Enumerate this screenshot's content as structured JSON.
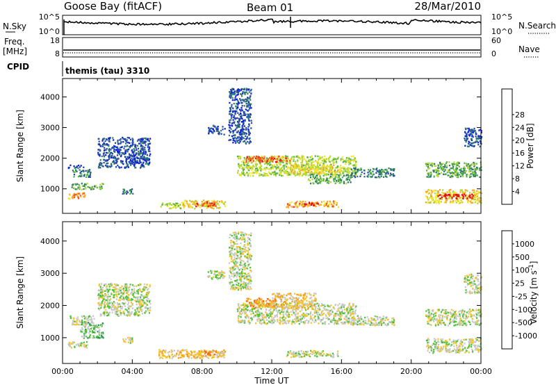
{
  "header": {
    "station": "Goose Bay (fitACF)",
    "beam": "Beam 01",
    "date": "28/Mar/2010"
  },
  "noise_panel": {
    "left_label": "N.Sky",
    "right_label": "N.Search",
    "left_ticks": [
      "10^5",
      "10^0"
    ],
    "right_ticks": [
      "10^5",
      "10^0"
    ]
  },
  "freq_panel": {
    "left_label_1": "Freq.",
    "left_label_2": "[MHz]",
    "right_label": "Nave",
    "left_ticks": [
      "18",
      "8"
    ],
    "right_ticks": [
      "60",
      "0"
    ]
  },
  "cpid_panel": {
    "label": "CPID",
    "program": "themis (tau) 3310"
  },
  "chart_data": [
    {
      "type": "heatmap",
      "name": "power",
      "ylabel": "Slant Range [km]",
      "y_ticks": [
        1000,
        2000,
        3000,
        4000
      ],
      "ylim": [
        200,
        4600
      ],
      "xlim": [
        0,
        24
      ],
      "colorbar": {
        "label": "Power [dB]",
        "ticks": [
          "4",
          "8",
          "12",
          "16",
          "20",
          "24",
          "28"
        ],
        "colors": [
          "#0a1fe0",
          "#2a49a8",
          "#2f7d6a",
          "#55b546",
          "#b3d63a",
          "#f2e52a",
          "#f7a629",
          "#f1541f",
          "#e30d12"
        ]
      },
      "regions": [
        {
          "t0": 0.3,
          "t1": 1.3,
          "r0": 700,
          "r1": 900,
          "level": 6
        },
        {
          "t0": 0.5,
          "t1": 2.3,
          "r0": 1000,
          "r1": 1200,
          "level": 3
        },
        {
          "t0": 0.5,
          "t1": 1.6,
          "r0": 1400,
          "r1": 1650,
          "level": 2
        },
        {
          "t0": 0.3,
          "t1": 1.2,
          "r0": 1700,
          "r1": 1800,
          "level": 1
        },
        {
          "t0": 2.0,
          "t1": 5.0,
          "r0": 1700,
          "r1": 2700,
          "level": 1
        },
        {
          "t0": 3.4,
          "t1": 4.0,
          "r0": 850,
          "r1": 1050,
          "level": 2
        },
        {
          "t0": 5.5,
          "t1": 6.8,
          "r0": 380,
          "r1": 560,
          "level": 4
        },
        {
          "t0": 6.8,
          "t1": 9.3,
          "r0": 380,
          "r1": 650,
          "level": 5
        },
        {
          "t0": 7.5,
          "t1": 8.8,
          "r0": 450,
          "r1": 600,
          "level": 7
        },
        {
          "t0": 8.3,
          "t1": 9.3,
          "r0": 2800,
          "r1": 3100,
          "level": 1
        },
        {
          "t0": 9.5,
          "t1": 10.8,
          "r0": 2500,
          "r1": 4300,
          "level": 1
        },
        {
          "t0": 10.0,
          "t1": 16.8,
          "r0": 1450,
          "r1": 2100,
          "level": 4
        },
        {
          "t0": 10.5,
          "t1": 13.0,
          "r0": 1900,
          "r1": 2100,
          "level": 7
        },
        {
          "t0": 13.0,
          "t1": 16.0,
          "r0": 1500,
          "r1": 1800,
          "level": 5
        },
        {
          "t0": 14.0,
          "t1": 16.5,
          "r0": 1200,
          "r1": 1500,
          "level": 3
        },
        {
          "t0": 12.8,
          "t1": 15.8,
          "r0": 420,
          "r1": 620,
          "level": 6
        },
        {
          "t0": 13.8,
          "t1": 14.8,
          "r0": 470,
          "r1": 580,
          "level": 8
        },
        {
          "t0": 16.5,
          "t1": 19.0,
          "r0": 1400,
          "r1": 1700,
          "level": 2
        },
        {
          "t0": 20.8,
          "t1": 24.0,
          "r0": 1400,
          "r1": 1900,
          "level": 3
        },
        {
          "t0": 20.8,
          "t1": 24.0,
          "r0": 550,
          "r1": 1000,
          "level": 5
        },
        {
          "t0": 21.5,
          "t1": 23.6,
          "r0": 700,
          "r1": 850,
          "level": 8
        },
        {
          "t0": 23.0,
          "t1": 24.0,
          "r0": 2400,
          "r1": 3000,
          "level": 1
        }
      ]
    },
    {
      "type": "heatmap",
      "name": "velocity",
      "xlabel": "Time UT",
      "ylabel": "Slant Range [km]",
      "x_ticks": [
        "00:00",
        "04:00",
        "08:00",
        "12:00",
        "16:00",
        "20:00",
        "00:00"
      ],
      "y_ticks": [
        1000,
        2000,
        3000,
        4000
      ],
      "ylim": [
        200,
        4600
      ],
      "xlim": [
        0,
        24
      ],
      "colorbar": {
        "label": "Velocity [m s^-1]",
        "ticks": [
          "1000",
          "500",
          "100",
          "25",
          "-25",
          "-100",
          "-500",
          "-1000"
        ],
        "colors": [
          "#1232c8",
          "#2a5fa8",
          "#2e8c5a",
          "#4fc23a",
          "#c8c8c8",
          "#f5c52a",
          "#f39a20",
          "#f06a1e",
          "#e6101a"
        ]
      },
      "regions": [
        {
          "t0": 0.3,
          "t1": 1.4,
          "r0": 700,
          "r1": 900,
          "level": 4
        },
        {
          "t0": 0.4,
          "t1": 1.8,
          "r0": 1400,
          "r1": 1700,
          "level": 4
        },
        {
          "t0": 1.0,
          "t1": 2.3,
          "r0": 1000,
          "r1": 1500,
          "level": 3
        },
        {
          "t0": 2.0,
          "t1": 5.0,
          "r0": 1700,
          "r1": 2700,
          "level": 4
        },
        {
          "t0": 3.4,
          "t1": 4.0,
          "r0": 850,
          "r1": 1050,
          "level": 4
        },
        {
          "t0": 5.5,
          "t1": 9.3,
          "r0": 380,
          "r1": 650,
          "level": 5
        },
        {
          "t0": 7.5,
          "t1": 8.8,
          "r0": 450,
          "r1": 620,
          "level": 6
        },
        {
          "t0": 8.3,
          "t1": 9.3,
          "r0": 2800,
          "r1": 3100,
          "level": 4
        },
        {
          "t0": 9.5,
          "t1": 10.8,
          "r0": 2500,
          "r1": 4300,
          "level": 4
        },
        {
          "t0": 10.0,
          "t1": 16.8,
          "r0": 1450,
          "r1": 2100,
          "level": 4
        },
        {
          "t0": 10.5,
          "t1": 12.2,
          "r0": 1950,
          "r1": 2250,
          "level": 6
        },
        {
          "t0": 12.0,
          "t1": 14.5,
          "r0": 1900,
          "r1": 2400,
          "level": 5
        },
        {
          "t0": 12.8,
          "t1": 15.8,
          "r0": 420,
          "r1": 620,
          "level": 4
        },
        {
          "t0": 16.5,
          "t1": 19.0,
          "r0": 1400,
          "r1": 1700,
          "level": 4
        },
        {
          "t0": 20.8,
          "t1": 24.0,
          "r0": 1400,
          "r1": 1900,
          "level": 4
        },
        {
          "t0": 20.8,
          "t1": 24.0,
          "r0": 550,
          "r1": 1000,
          "level": 4
        },
        {
          "t0": 23.0,
          "t1": 24.0,
          "r0": 2400,
          "r1": 3000,
          "level": 4
        }
      ]
    }
  ]
}
